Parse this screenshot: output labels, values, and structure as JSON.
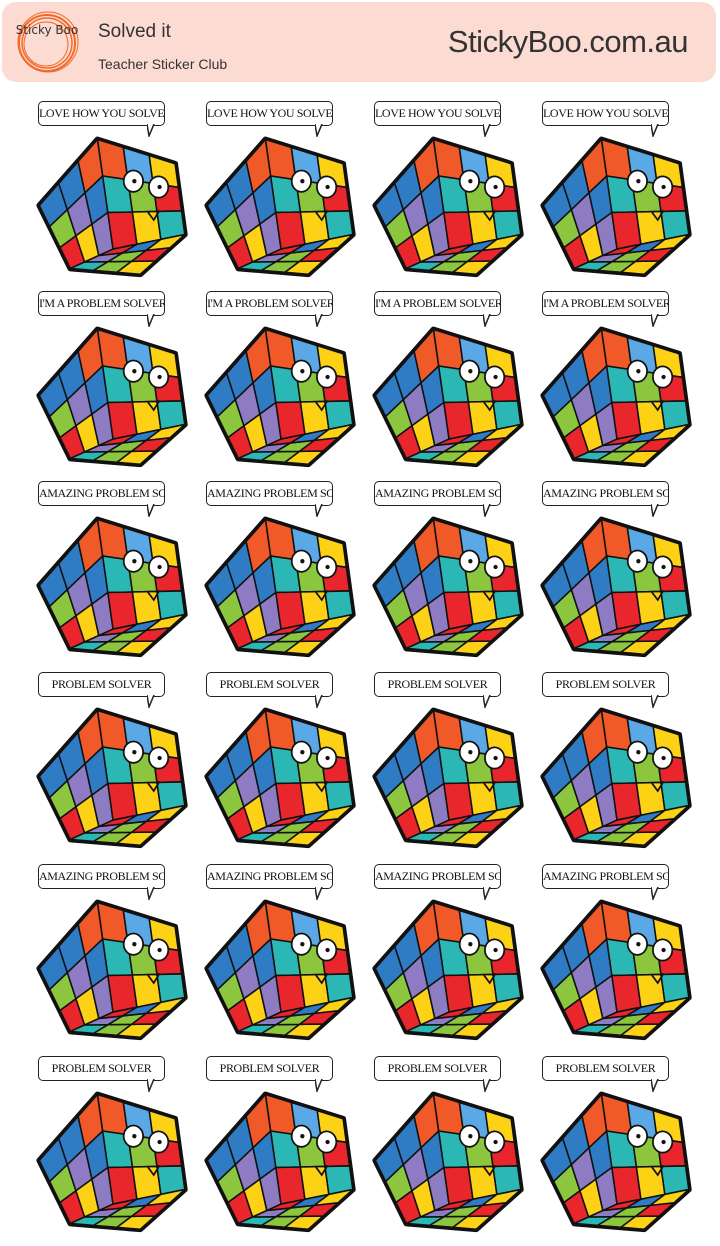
{
  "header": {
    "logo_text": "Sticky Boo",
    "title": "Solved it",
    "subtitle": "Teacher Sticker Club",
    "website": "StickyBoo.com.au",
    "background_color": "#fcdcd2",
    "logo_color": "#f26a2a"
  },
  "sticker_rows": [
    {
      "caption": "LOVE HOW YOU SOLVED THIS"
    },
    {
      "caption": "I'M A PROBLEM SOLVER"
    },
    {
      "caption": "AMAZING PROBLEM SOLVING"
    },
    {
      "caption": "PROBLEM SOLVER"
    },
    {
      "caption": "AMAZING PROBLEM SOLVING"
    },
    {
      "caption": "PROBLEM SOLVER"
    }
  ],
  "stickers_per_row": 4,
  "cube_colors": {
    "blue": "#2f7cc4",
    "green": "#8cc63f",
    "yellow": "#fcd116",
    "red": "#e8262c",
    "purple": "#8e7cc3",
    "teal": "#2bb8b4",
    "orange": "#f05a28",
    "lightblue": "#5aa9e6"
  }
}
